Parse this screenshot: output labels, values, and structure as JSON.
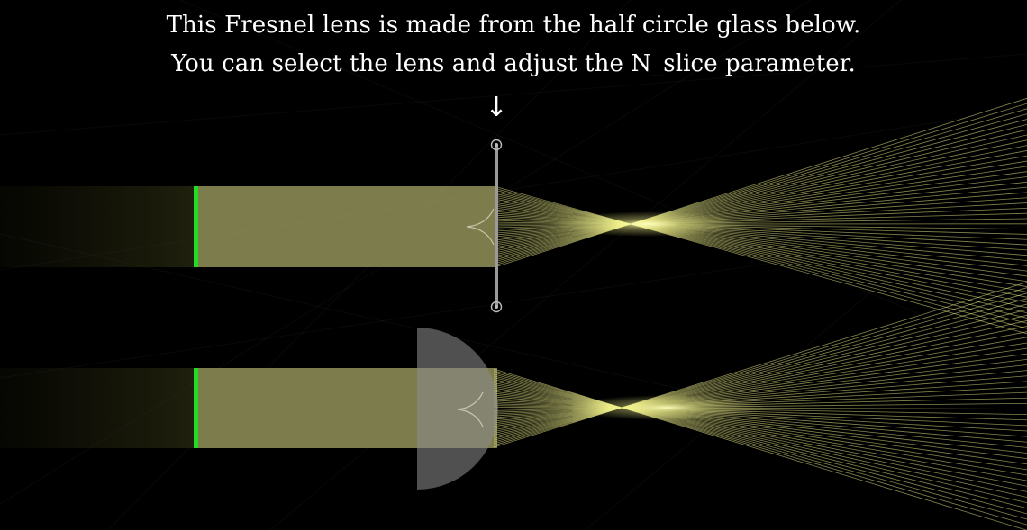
{
  "captions": {
    "line1": "This Fresnel lens is made from the half circle glass below.",
    "line2": "You can select the lens and adjust the N_slice parameter.",
    "arrow": "↓"
  },
  "colors": {
    "background": "#000000",
    "beam": "#c8c87a",
    "ray": "#f2f28c",
    "focus_glow": "#ffffb0",
    "source": "#22dd22",
    "glass": "#8a8a8a",
    "lens_line": "#9a9a9a",
    "handle": "#bbbbbb",
    "text": "#ffffff"
  },
  "icons": {
    "lens_handle": "concentric-circle-handle-icon",
    "pointer": "down-arrow-icon"
  }
}
